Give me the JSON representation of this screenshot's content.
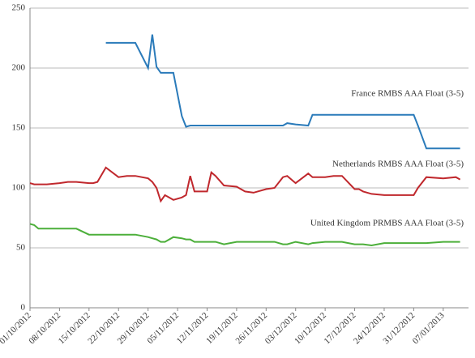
{
  "chart_data": {
    "type": "line",
    "x": [
      "2012-10-01",
      "2012-10-02",
      "2012-10-03",
      "2012-10-05",
      "2012-10-08",
      "2012-10-10",
      "2012-10-12",
      "2012-10-15",
      "2012-10-16",
      "2012-10-17",
      "2012-10-19",
      "2012-10-22",
      "2012-10-24",
      "2012-10-26",
      "2012-10-29",
      "2012-10-30",
      "2012-10-31",
      "2012-11-01",
      "2012-11-02",
      "2012-11-04",
      "2012-11-06",
      "2012-11-07",
      "2012-11-08",
      "2012-11-09",
      "2012-11-12",
      "2012-11-13",
      "2012-11-14",
      "2012-11-16",
      "2012-11-19",
      "2012-11-21",
      "2012-11-23",
      "2012-11-26",
      "2012-11-28",
      "2012-11-30",
      "2012-12-01",
      "2012-12-03",
      "2012-12-06",
      "2012-12-07",
      "2012-12-10",
      "2012-12-12",
      "2012-12-14",
      "2012-12-17",
      "2012-12-18",
      "2012-12-19",
      "2012-12-21",
      "2012-12-24",
      "2012-12-26",
      "2012-12-28",
      "2012-12-31",
      "2013-01-01",
      "2013-01-03",
      "2013-01-07",
      "2013-01-10",
      "2013-01-11"
    ],
    "series": [
      {
        "name": "France RMBS AAA Float (3-5)",
        "color": "#2b7bba",
        "values": [
          null,
          null,
          null,
          null,
          null,
          null,
          null,
          null,
          null,
          null,
          221,
          221,
          221,
          221,
          200,
          228,
          201,
          196,
          196,
          196,
          160,
          151,
          152,
          152,
          152,
          152,
          152,
          152,
          152,
          152,
          152,
          152,
          152,
          152,
          154,
          153,
          152,
          161,
          161,
          161,
          161,
          161,
          161,
          161,
          161,
          161,
          161,
          161,
          161,
          152,
          133,
          133,
          133,
          133
        ]
      },
      {
        "name": "Netherlands RMBS AAA Float (3-5)",
        "color": "#c0282d",
        "values": [
          104,
          103,
          103,
          103,
          104,
          105,
          105,
          104,
          104,
          105,
          117,
          109,
          110,
          110,
          108,
          105,
          100,
          89,
          94,
          90,
          92,
          94,
          110,
          97,
          97,
          113,
          110,
          102,
          101,
          97,
          96,
          99,
          100,
          109,
          110,
          104,
          112,
          109,
          109,
          110,
          110,
          99,
          99,
          97,
          95,
          94,
          94,
          94,
          94,
          100,
          109,
          108,
          109,
          107
        ]
      },
      {
        "name": "United Kingdom PRMBS AAA Float (3-5)",
        "color": "#4caf3a",
        "values": [
          70,
          69,
          66,
          66,
          66,
          66,
          66,
          61,
          61,
          61,
          61,
          61,
          61,
          61,
          59,
          58,
          57,
          55,
          55,
          59,
          58,
          57,
          57,
          55,
          55,
          55,
          55,
          53,
          55,
          55,
          55,
          55,
          55,
          53,
          53,
          55,
          53,
          54,
          55,
          55,
          55,
          53,
          53,
          53,
          52,
          54,
          54,
          54,
          54,
          54,
          54,
          55,
          55,
          55
        ]
      }
    ],
    "xlim": [
      "2012-10-01",
      "2013-01-13"
    ],
    "xticks": [
      {
        "value": "2012-10-01",
        "label": "01/10/2012"
      },
      {
        "value": "2012-10-08",
        "label": "08/10/2012"
      },
      {
        "value": "2012-10-15",
        "label": "15/10/2012"
      },
      {
        "value": "2012-10-22",
        "label": "22/10/2012"
      },
      {
        "value": "2012-10-29",
        "label": "29/10/2012"
      },
      {
        "value": "2012-11-05",
        "label": "05/11/2012"
      },
      {
        "value": "2012-11-12",
        "label": "12/11/2012"
      },
      {
        "value": "2012-11-19",
        "label": "19/11/2012"
      },
      {
        "value": "2012-11-26",
        "label": "26/11/2012"
      },
      {
        "value": "2012-12-03",
        "label": "03/12/2012"
      },
      {
        "value": "2012-12-10",
        "label": "10/12/2012"
      },
      {
        "value": "2012-12-17",
        "label": "17/12/2012"
      },
      {
        "value": "2012-12-24",
        "label": "24/12/2012"
      },
      {
        "value": "2012-12-31",
        "label": "31/12/2012"
      },
      {
        "value": "2013-01-07",
        "label": "07/01/2013"
      }
    ],
    "ylim": [
      0,
      250
    ],
    "yticks": [
      0,
      50,
      100,
      150,
      200,
      250
    ],
    "grid": true
  }
}
